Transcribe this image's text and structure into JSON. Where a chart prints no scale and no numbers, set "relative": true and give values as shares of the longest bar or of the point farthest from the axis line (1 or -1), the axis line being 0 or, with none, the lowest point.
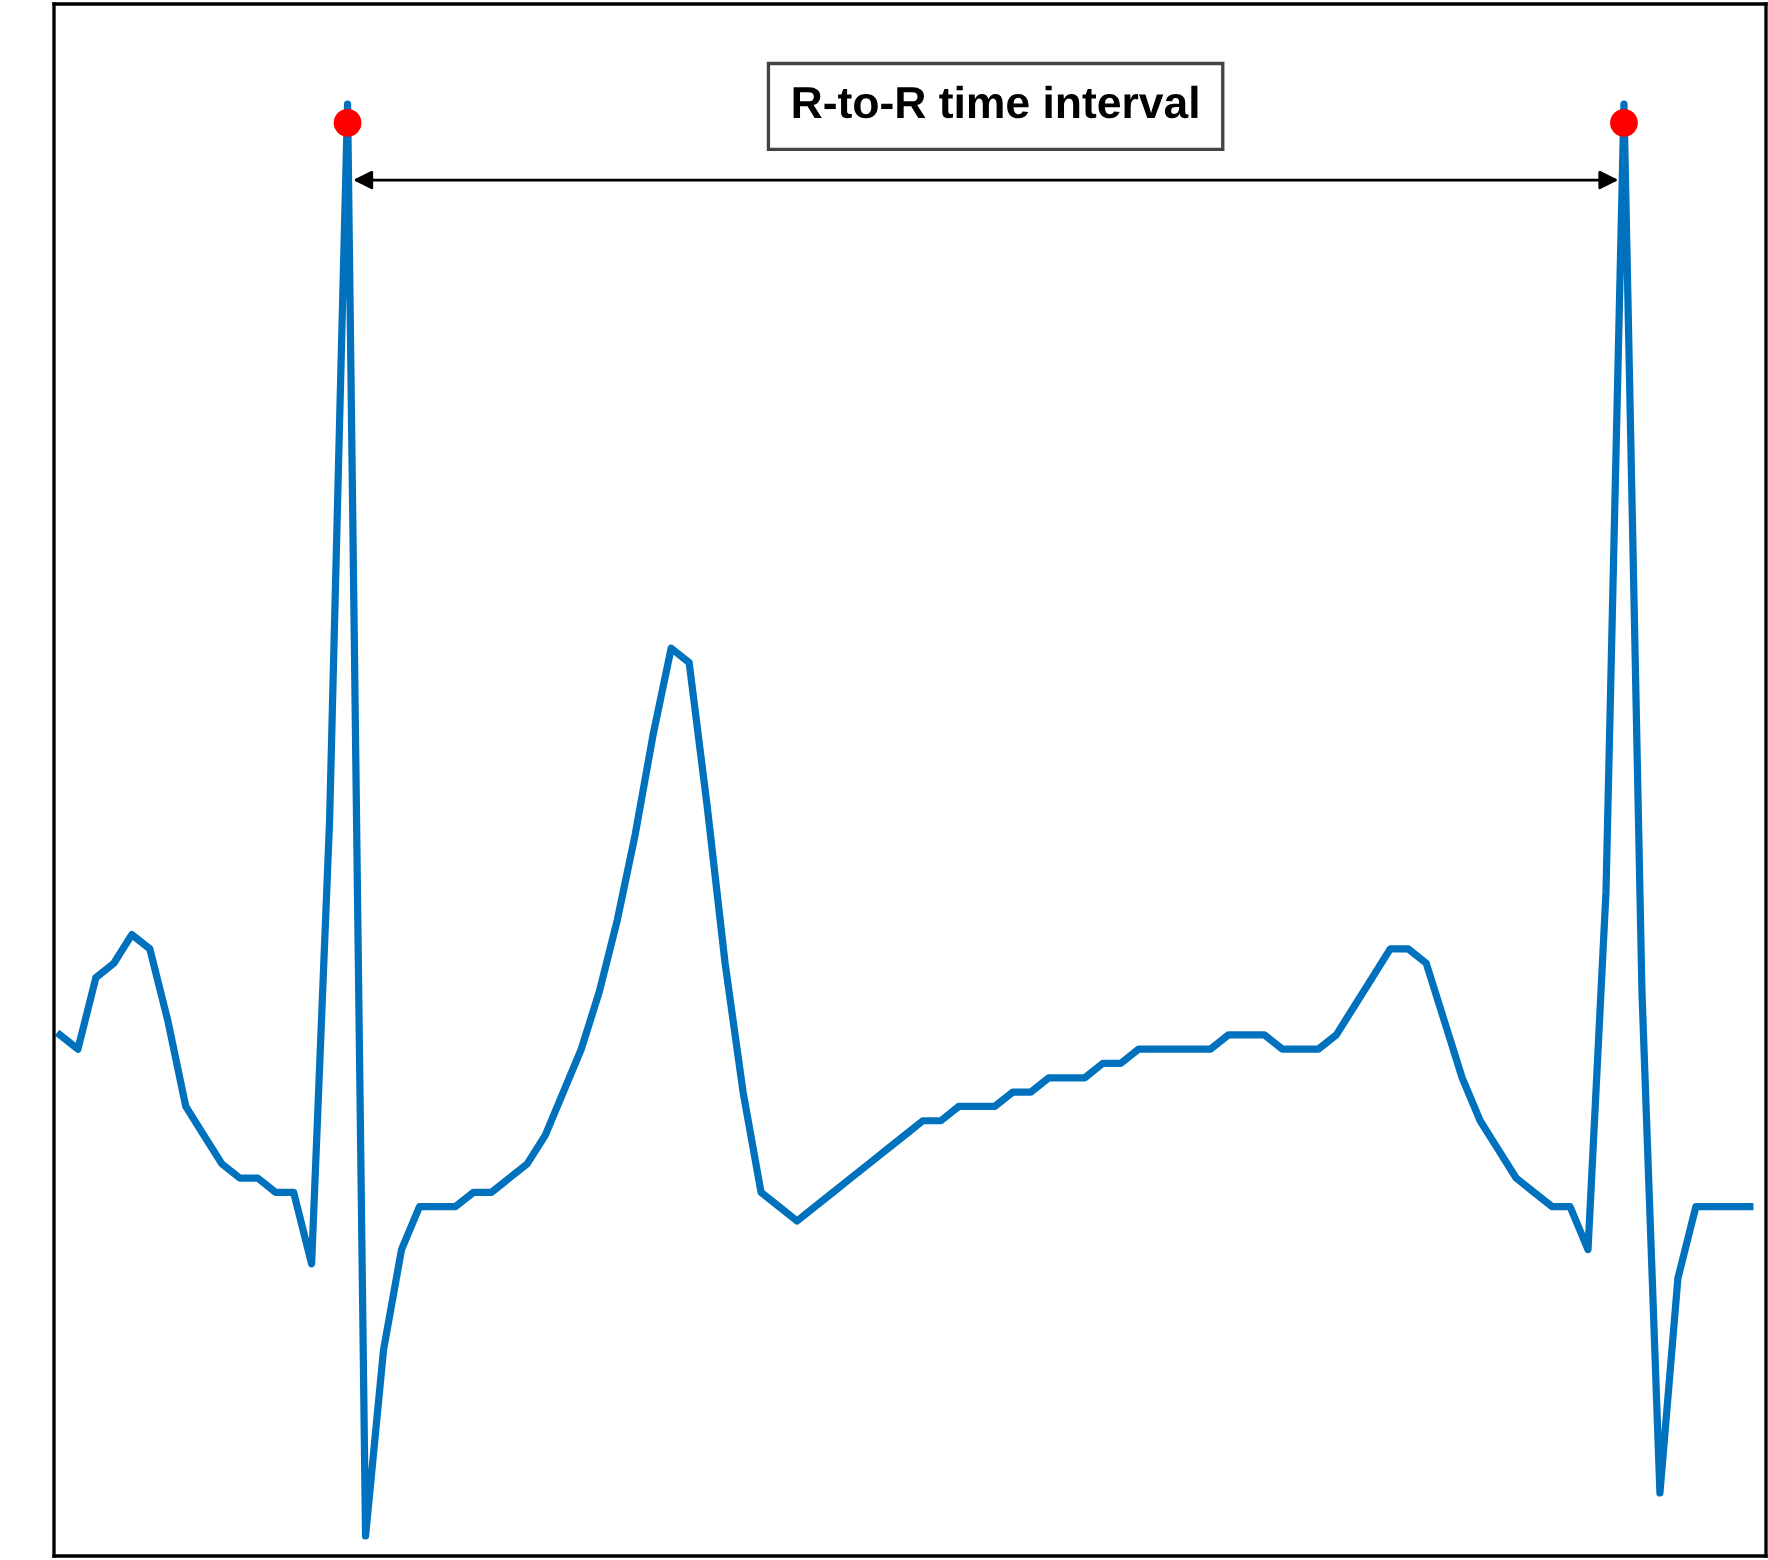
{
  "chart_data": {
    "type": "line",
    "relative": true,
    "categories": [
      null,
      null,
      null,
      null,
      null,
      null,
      null,
      null,
      null,
      null,
      null,
      null,
      null,
      null,
      null,
      null,
      null,
      null,
      null,
      null,
      null,
      null,
      null,
      null,
      null,
      null,
      null,
      null,
      null,
      null,
      null,
      null,
      null,
      null,
      null,
      null,
      null,
      null,
      null,
      null,
      null,
      null,
      null,
      null,
      null,
      null,
      null,
      null,
      null,
      null,
      null,
      null,
      null,
      null,
      null,
      null,
      null,
      null,
      null,
      null,
      null,
      null,
      null,
      null,
      null,
      null,
      null,
      null,
      null,
      null,
      null,
      null,
      null,
      null,
      null,
      null,
      null,
      null,
      null,
      null,
      null,
      null,
      null,
      null,
      null,
      null,
      null,
      null,
      null,
      null,
      null,
      null,
      null,
      null,
      null
    ],
    "annotations": [
      "R-to-R time interval"
    ],
    "series": [
      {
        "color": "#0072bd",
        "marker": "none",
        "values": [
          0.35,
          0.34,
          0.39,
          0.4,
          0.42,
          0.41,
          0.36,
          0.3,
          0.28,
          0.26,
          0.25,
          0.25,
          0.24,
          0.24,
          0.19,
          0.5,
          1.0,
          0.0,
          0.13,
          0.2,
          0.23,
          0.23,
          0.23,
          0.24,
          0.24,
          0.25,
          0.26,
          0.28,
          0.31,
          0.34,
          0.38,
          0.43,
          0.49,
          0.56,
          0.62,
          0.61,
          0.51,
          0.4,
          0.31,
          0.24,
          0.23,
          0.22,
          0.23,
          0.24,
          0.25,
          0.26,
          0.27,
          0.28,
          0.29,
          0.29,
          0.3,
          0.3,
          0.3,
          0.31,
          0.31,
          0.32,
          0.32,
          0.32,
          0.33,
          0.33,
          0.34,
          0.34,
          0.34,
          0.34,
          0.34,
          0.35,
          0.35,
          0.35,
          0.34,
          0.34,
          0.34,
          0.35,
          0.37,
          0.39,
          0.41,
          0.41,
          0.4,
          0.36,
          0.32,
          0.29,
          0.27,
          0.25,
          0.24,
          0.23,
          0.23,
          0.2,
          0.45,
          1.0,
          0.38,
          0.03,
          0.18,
          0.23,
          0.23,
          0.23,
          0.23
        ]
      }
    ]
  }
}
